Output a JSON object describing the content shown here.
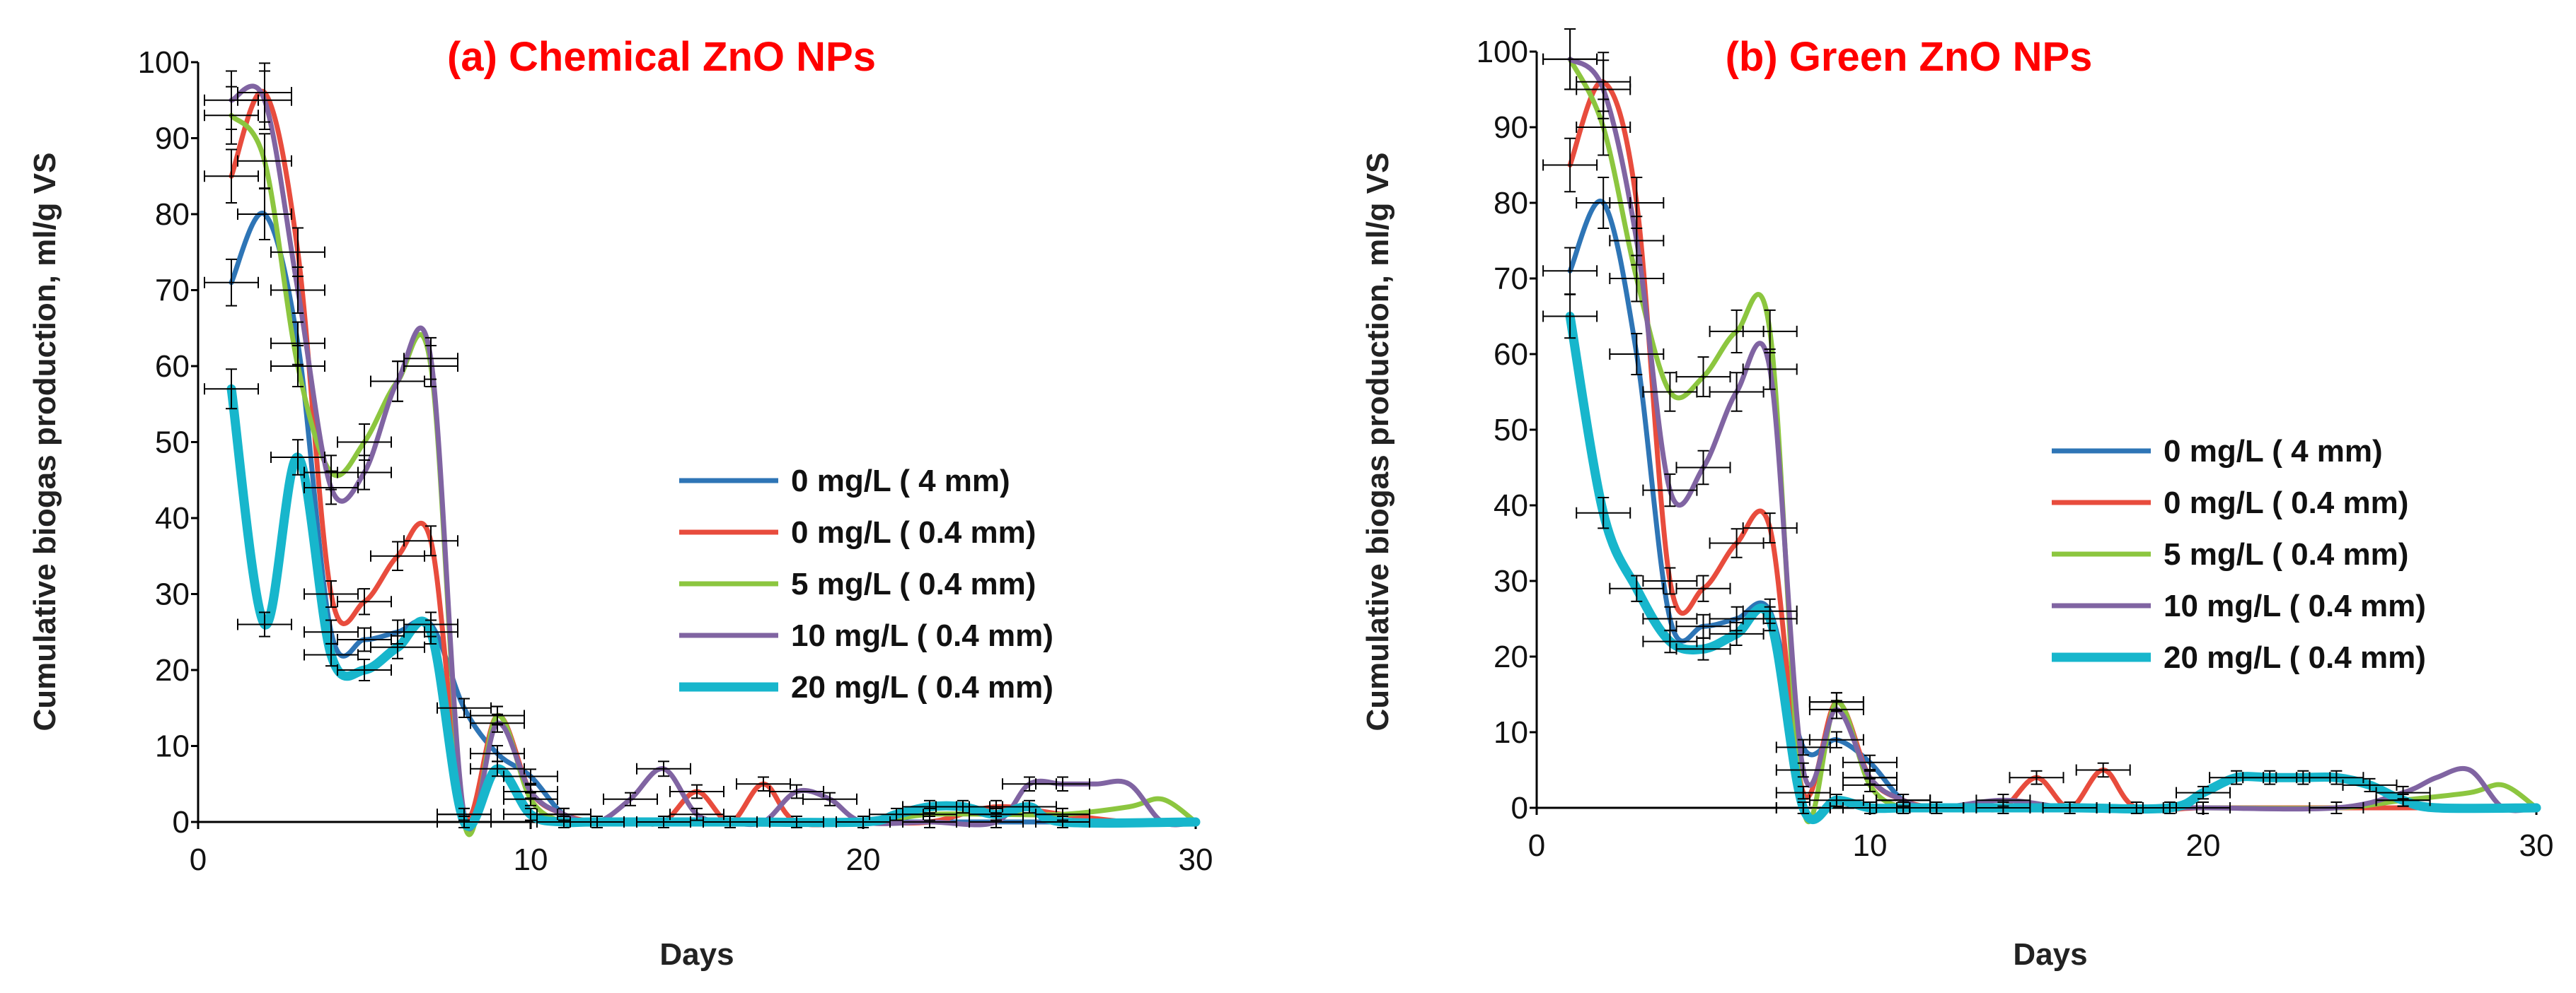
{
  "figure": {
    "shared_ylabel": "Cumulative biogas production, ml/g VS",
    "shared_xlabel": "Days"
  },
  "chart_data": [
    {
      "type": "line",
      "title": "(a) Chemical ZnO NPs",
      "title_color": "#ff0000",
      "xlabel": "Days",
      "ylabel": "Cumulative biogas production, ml/g VS",
      "xlim": [
        0,
        30
      ],
      "ylim": [
        0,
        100
      ],
      "xticks": [
        0,
        10,
        20,
        30
      ],
      "yticks": [
        0,
        10,
        20,
        30,
        40,
        50,
        60,
        70,
        80,
        90,
        100
      ],
      "grid": false,
      "legend_position": "right",
      "series": [
        {
          "name": "0 mg/L ( 4 mm)",
          "color": "#2e75b6",
          "x": [
            1,
            2,
            3,
            4,
            5,
            6,
            7,
            8,
            9,
            10,
            11,
            12,
            14,
            16,
            18,
            20,
            22,
            24,
            26,
            28,
            30
          ],
          "y": [
            71,
            80,
            63,
            25,
            24,
            25,
            26,
            15,
            9,
            6,
            1,
            0,
            0,
            0,
            0,
            0,
            0,
            0,
            0,
            0,
            0
          ]
        },
        {
          "name": "0 mg/L ( 0.4 mm)",
          "color": "#e84c3d",
          "x": [
            1,
            2,
            3,
            4,
            5,
            6,
            7,
            8,
            9,
            10,
            11,
            12,
            13,
            14,
            15,
            16,
            17,
            18,
            20,
            22,
            24,
            26,
            28,
            30
          ],
          "y": [
            85,
            96,
            75,
            30,
            29,
            35,
            37,
            1,
            14,
            4,
            1,
            0,
            0,
            0,
            4,
            0,
            5,
            0,
            0,
            0,
            2,
            1,
            0,
            0
          ]
        },
        {
          "name": "5 mg/L ( 0.4 mm)",
          "color": "#8cc63f",
          "x": [
            1,
            2,
            3,
            4,
            5,
            6,
            7,
            8,
            9,
            10,
            11,
            12,
            16,
            20,
            22,
            24,
            26,
            28,
            29,
            30
          ],
          "y": [
            93,
            87,
            60,
            46,
            50,
            58,
            60,
            0,
            14,
            3,
            0,
            0,
            0,
            0,
            1,
            1,
            1,
            2,
            3,
            0
          ]
        },
        {
          "name": "10 mg/L ( 0.4 mm)",
          "color": "#8064a2",
          "x": [
            1,
            2,
            3,
            4,
            5,
            6,
            7,
            8,
            9,
            10,
            11,
            12,
            13,
            14,
            15,
            16,
            17,
            18,
            19,
            20,
            22,
            24,
            25,
            26,
            27,
            28,
            29,
            30
          ],
          "y": [
            95,
            95,
            70,
            44,
            46,
            58,
            61,
            1,
            13,
            4,
            1,
            0,
            3,
            7,
            1,
            0,
            0,
            4,
            3,
            0,
            0,
            0,
            5,
            5,
            5,
            5,
            0,
            0
          ]
        },
        {
          "name": "20 mg/L ( 0.4 mm)",
          "color": "#17b6cc",
          "x": [
            1,
            2,
            3,
            4,
            5,
            6,
            7,
            8,
            9,
            10,
            11,
            12,
            16,
            20,
            21,
            22,
            23,
            24,
            25,
            26,
            30
          ],
          "y": [
            57,
            26,
            48,
            22,
            20,
            23,
            25,
            0,
            7,
            1,
            0,
            0,
            0,
            0,
            1,
            2,
            2,
            1,
            2,
            0,
            0
          ]
        }
      ]
    },
    {
      "type": "line",
      "title": "(b) Green ZnO NPs",
      "title_color": "#ff0000",
      "xlabel": "Days",
      "ylabel": "Cumulative biogas production, ml/g VS",
      "xlim": [
        0,
        30
      ],
      "ylim": [
        0,
        100
      ],
      "xticks": [
        0,
        10,
        20,
        30
      ],
      "yticks": [
        0,
        10,
        20,
        30,
        40,
        50,
        60,
        70,
        80,
        90,
        100
      ],
      "grid": false,
      "legend_position": "right",
      "series": [
        {
          "name": "0 mg/L ( 4 mm)",
          "color": "#2e75b6",
          "x": [
            1,
            2,
            3,
            4,
            5,
            6,
            7,
            8,
            9,
            10,
            11,
            12,
            16,
            20,
            24,
            28,
            30
          ],
          "y": [
            71,
            80,
            60,
            25,
            24,
            25,
            26,
            8,
            9,
            6,
            1,
            0,
            0,
            0,
            0,
            0,
            0
          ]
        },
        {
          "name": "0 mg/L ( 0.4 mm)",
          "color": "#e84c3d",
          "x": [
            1,
            2,
            3,
            4,
            5,
            6,
            7,
            8,
            9,
            10,
            11,
            12,
            13,
            14,
            15,
            16,
            17,
            18,
            20,
            24,
            28,
            30
          ],
          "y": [
            85,
            96,
            80,
            30,
            29,
            35,
            37,
            2,
            14,
            4,
            1,
            0,
            0,
            0,
            4,
            0,
            5,
            0,
            0,
            0,
            0,
            0
          ]
        },
        {
          "name": "5 mg/L ( 0.4 mm)",
          "color": "#8cc63f",
          "x": [
            1,
            2,
            3,
            4,
            5,
            6,
            7,
            8,
            9,
            10,
            11,
            12,
            16,
            20,
            24,
            26,
            28,
            29,
            30
          ],
          "y": [
            99,
            90,
            70,
            55,
            57,
            63,
            63,
            0,
            14,
            3,
            0,
            0,
            0,
            0,
            0,
            1,
            2,
            3,
            0
          ]
        },
        {
          "name": "10 mg/L ( 0.4 mm)",
          "color": "#8064a2",
          "x": [
            1,
            2,
            3,
            4,
            5,
            6,
            7,
            8,
            9,
            10,
            11,
            12,
            14,
            16,
            18,
            20,
            24,
            26,
            27,
            28,
            29,
            30
          ],
          "y": [
            99,
            95,
            75,
            42,
            45,
            55,
            58,
            5,
            13,
            4,
            1,
            0,
            1,
            0,
            0,
            0,
            0,
            2,
            4,
            5,
            0,
            0
          ]
        },
        {
          "name": "20 mg/L ( 0.4 mm)",
          "color": "#17b6cc",
          "x": [
            1,
            2,
            3,
            4,
            5,
            6,
            7,
            8,
            9,
            10,
            11,
            12,
            16,
            19,
            20,
            21,
            22,
            23,
            24,
            25,
            26,
            27,
            30
          ],
          "y": [
            65,
            39,
            29,
            22,
            21,
            23,
            25,
            0,
            1,
            0,
            0,
            0,
            0,
            0,
            2,
            4,
            4,
            4,
            4,
            3,
            1,
            0,
            0
          ]
        }
      ]
    }
  ]
}
